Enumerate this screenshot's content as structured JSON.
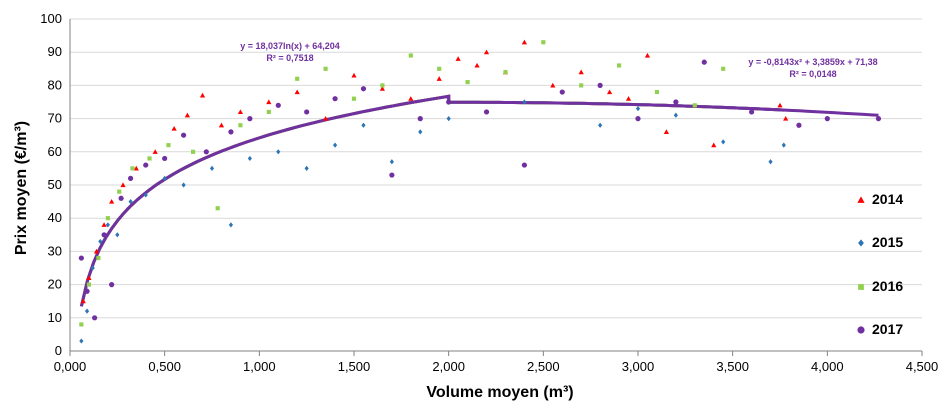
{
  "chart_data": {
    "type": "scatter",
    "xlabel": "Volume moyen (m³)",
    "ylabel": "Prix moyen (€/m³)",
    "xlim": [
      0,
      4.5
    ],
    "ylim": [
      0,
      100
    ],
    "x_ticks": [
      "0,000",
      "0,500",
      "1,000",
      "1,500",
      "2,000",
      "2,500",
      "3,000",
      "3,500",
      "4,000",
      "4,500"
    ],
    "y_ticks": [
      "0",
      "10",
      "20",
      "30",
      "40",
      "50",
      "60",
      "70",
      "80",
      "90",
      "100"
    ],
    "grid": "horizontal",
    "legend_position": "right",
    "series": [
      {
        "name": "2014",
        "color": "#ff0000",
        "marker": "triangle",
        "points": [
          [
            0.07,
            15
          ],
          [
            0.1,
            22
          ],
          [
            0.14,
            30
          ],
          [
            0.18,
            38
          ],
          [
            0.22,
            45
          ],
          [
            0.28,
            50
          ],
          [
            0.35,
            55
          ],
          [
            0.45,
            60
          ],
          [
            0.55,
            67
          ],
          [
            0.62,
            71
          ],
          [
            0.7,
            77
          ],
          [
            0.8,
            68
          ],
          [
            0.9,
            72
          ],
          [
            1.05,
            75
          ],
          [
            1.2,
            78
          ],
          [
            1.35,
            70
          ],
          [
            1.5,
            83
          ],
          [
            1.65,
            79
          ],
          [
            1.8,
            76
          ],
          [
            1.95,
            82
          ],
          [
            2.05,
            88
          ],
          [
            2.15,
            86
          ],
          [
            2.2,
            90
          ],
          [
            2.3,
            84
          ],
          [
            2.4,
            93
          ],
          [
            2.55,
            80
          ],
          [
            2.7,
            84
          ],
          [
            2.85,
            78
          ],
          [
            2.95,
            76
          ],
          [
            3.05,
            89
          ],
          [
            3.15,
            66
          ],
          [
            3.4,
            62
          ],
          [
            3.75,
            74
          ],
          [
            3.78,
            70
          ]
        ],
        "trend": {
          "kind": "poly2",
          "a": -0.8143,
          "b": 3.3859,
          "c": 71.38,
          "from": 2.0,
          "to": 3.77
        }
      },
      {
        "name": "2015",
        "color": "#2e75b6",
        "marker": "diamond",
        "points": [
          [
            0.06,
            3
          ],
          [
            0.09,
            12
          ],
          [
            0.12,
            25
          ],
          [
            0.16,
            33
          ],
          [
            0.2,
            38
          ],
          [
            0.25,
            35
          ],
          [
            0.32,
            45
          ],
          [
            0.4,
            47
          ],
          [
            0.5,
            52
          ],
          [
            0.6,
            50
          ],
          [
            0.75,
            55
          ],
          [
            0.85,
            38
          ],
          [
            0.95,
            58
          ],
          [
            1.1,
            60
          ],
          [
            1.25,
            55
          ],
          [
            1.4,
            62
          ],
          [
            1.55,
            68
          ],
          [
            1.7,
            57
          ],
          [
            1.85,
            66
          ],
          [
            2.0,
            70
          ],
          [
            2.2,
            72
          ],
          [
            2.4,
            75
          ],
          [
            2.6,
            78
          ],
          [
            2.8,
            68
          ],
          [
            3.0,
            73
          ],
          [
            3.2,
            71
          ],
          [
            3.45,
            63
          ],
          [
            3.7,
            57
          ],
          [
            3.77,
            62
          ]
        ],
        "trend": {
          "kind": "poly2",
          "a": -0.8143,
          "b": 3.3859,
          "c": 71.38,
          "from": 2.0,
          "to": 3.77
        }
      },
      {
        "name": "2016",
        "color": "#92d050",
        "marker": "square",
        "points": [
          [
            0.06,
            8
          ],
          [
            0.1,
            20
          ],
          [
            0.15,
            28
          ],
          [
            0.2,
            40
          ],
          [
            0.26,
            48
          ],
          [
            0.33,
            55
          ],
          [
            0.42,
            58
          ],
          [
            0.52,
            62
          ],
          [
            0.65,
            60
          ],
          [
            0.78,
            43
          ],
          [
            0.9,
            68
          ],
          [
            1.05,
            72
          ],
          [
            1.2,
            82
          ],
          [
            1.35,
            85
          ],
          [
            1.5,
            76
          ],
          [
            1.65,
            80
          ],
          [
            1.8,
            89
          ],
          [
            1.95,
            85
          ],
          [
            2.1,
            81
          ],
          [
            2.3,
            84
          ],
          [
            2.5,
            93
          ],
          [
            2.7,
            80
          ],
          [
            2.9,
            86
          ],
          [
            3.1,
            78
          ],
          [
            3.3,
            74
          ],
          [
            3.45,
            85
          ]
        ],
        "trend": {
          "kind": "poly2",
          "a": -0.8143,
          "b": 3.3859,
          "c": 71.38,
          "from": 2.0,
          "to": 3.45
        }
      },
      {
        "name": "2017",
        "color": "#7030a0",
        "marker": "circle",
        "points": [
          [
            0.06,
            28
          ],
          [
            0.09,
            18
          ],
          [
            0.13,
            10
          ],
          [
            0.18,
            35
          ],
          [
            0.22,
            20
          ],
          [
            0.27,
            46
          ],
          [
            0.32,
            52
          ],
          [
            0.4,
            56
          ],
          [
            0.5,
            58
          ],
          [
            0.6,
            65
          ],
          [
            0.72,
            60
          ],
          [
            0.85,
            66
          ],
          [
            0.95,
            70
          ],
          [
            1.1,
            74
          ],
          [
            1.25,
            72
          ],
          [
            1.4,
            76
          ],
          [
            1.55,
            79
          ],
          [
            1.7,
            53
          ],
          [
            1.85,
            70
          ],
          [
            2.0,
            75
          ],
          [
            2.2,
            72
          ],
          [
            2.4,
            56
          ],
          [
            2.6,
            78
          ],
          [
            2.8,
            80
          ],
          [
            3.0,
            70
          ],
          [
            3.2,
            75
          ],
          [
            3.35,
            87
          ],
          [
            3.6,
            72
          ],
          [
            3.85,
            68
          ],
          [
            4.0,
            70
          ],
          [
            4.27,
            70
          ]
        ],
        "trend": {
          "kind": "poly2",
          "a": -0.8143,
          "b": 3.3859,
          "c": 71.38,
          "from": 2.0,
          "to": 4.27
        }
      }
    ],
    "log_trend": {
      "slope": 18.037,
      "intercept": 64.204,
      "from": 0.06,
      "to": 2.0
    },
    "annotations": [
      {
        "text": "y = 18,037ln(x) + 64,204"
      },
      {
        "text": "R² = 0,7518"
      },
      {
        "text": "y = -0,8143x² + 3,3859x + 71,38"
      },
      {
        "text": "R² = 0,0148"
      }
    ]
  }
}
